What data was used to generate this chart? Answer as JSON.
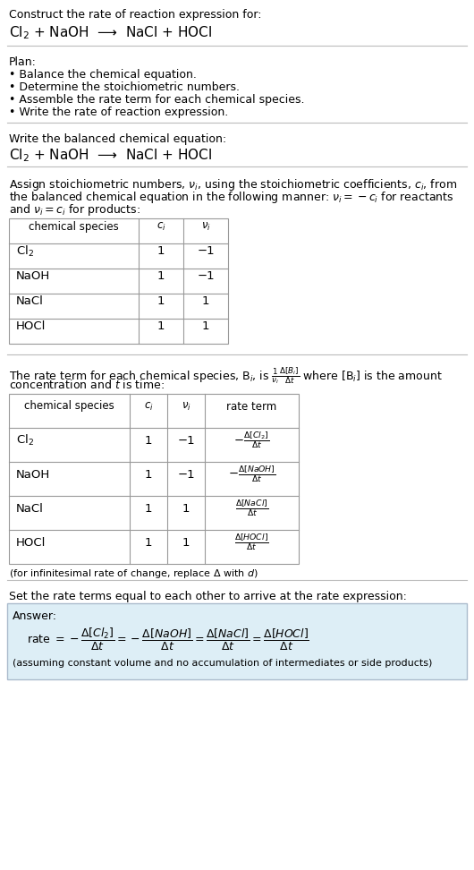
{
  "bg_color": "#ffffff",
  "title_line1": "Construct the rate of reaction expression for:",
  "reaction_line": "Cl$_2$ + NaOH  ⟶  NaCl + HOCl",
  "plan_header": "Plan:",
  "plan_items": [
    "• Balance the chemical equation.",
    "• Determine the stoichiometric numbers.",
    "• Assemble the rate term for each chemical species.",
    "• Write the rate of reaction expression."
  ],
  "balanced_header": "Write the balanced chemical equation:",
  "balanced_eq": "Cl$_2$ + NaOH  ⟶  NaCl + HOCl",
  "assign_text": [
    "Assign stoichiometric numbers, $\\nu_i$, using the stoichiometric coefficients, $c_i$, from",
    "the balanced chemical equation in the following manner: $\\nu_i = -c_i$ for reactants",
    "and $\\nu_i = c_i$ for products:"
  ],
  "table1_headers": [
    "chemical species",
    "$c_i$",
    "$\\nu_i$"
  ],
  "table1_rows": [
    [
      "Cl$_2$",
      "1",
      "−1"
    ],
    [
      "NaOH",
      "1",
      "−1"
    ],
    [
      "NaCl",
      "1",
      "1"
    ],
    [
      "HOCl",
      "1",
      "1"
    ]
  ],
  "rate_text": [
    "The rate term for each chemical species, B$_i$, is $\\frac{1}{\\nu_i}\\frac{\\Delta[B_i]}{\\Delta t}$ where [B$_i$] is the amount",
    "concentration and $t$ is time:"
  ],
  "table2_headers": [
    "chemical species",
    "$c_i$",
    "$\\nu_i$",
    "rate term"
  ],
  "table2_rows": [
    [
      "Cl$_2$",
      "1",
      "−1",
      "$-\\frac{\\Delta[Cl_2]}{\\Delta t}$"
    ],
    [
      "NaOH",
      "1",
      "−1",
      "$-\\frac{\\Delta[NaOH]}{\\Delta t}$"
    ],
    [
      "NaCl",
      "1",
      "1",
      "$\\frac{\\Delta[NaCl]}{\\Delta t}$"
    ],
    [
      "HOCl",
      "1",
      "1",
      "$\\frac{\\Delta[HOCl]}{\\Delta t}$"
    ]
  ],
  "inf_note": "(for infinitesimal rate of change, replace Δ with $d$)",
  "set_text": "Set the rate terms equal to each other to arrive at the rate expression:",
  "answer_label": "Answer:",
  "answer_rate": "rate $= -\\dfrac{\\Delta[Cl_2]}{\\Delta t} = -\\dfrac{\\Delta[NaOH]}{\\Delta t} = \\dfrac{\\Delta[NaCl]}{\\Delta t} = \\dfrac{\\Delta[HOCl]}{\\Delta t}$",
  "answer_note": "(assuming constant volume and no accumulation of intermediates or side products)",
  "answer_box_color": "#ddeef6",
  "line_color": "#bbbbbb",
  "table_line_color": "#999999"
}
